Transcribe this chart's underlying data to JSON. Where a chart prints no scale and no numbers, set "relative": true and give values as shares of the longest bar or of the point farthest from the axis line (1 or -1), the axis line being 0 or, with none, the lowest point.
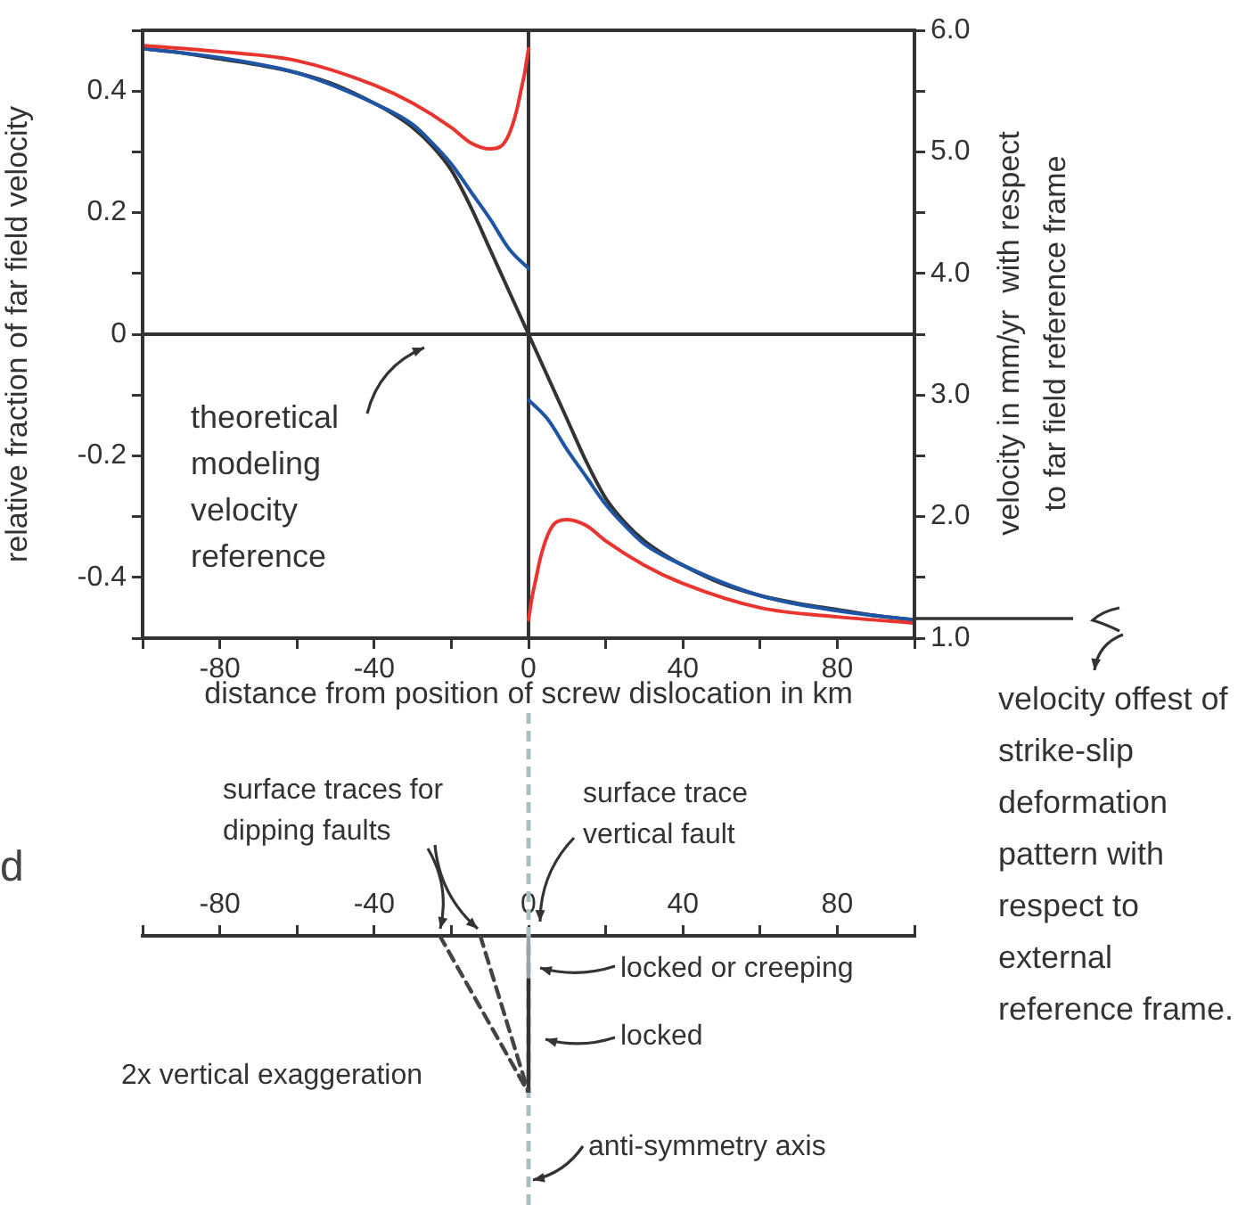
{
  "chart_data": [
    {
      "type": "line",
      "xlabel": "distance from position of screw dislocation in km",
      "ylabel": "relative fraction of far field velocity",
      "y2label": "velocity in mm/yr  with respect to far field reference frame",
      "xlim": [
        -100,
        100
      ],
      "xticks": [
        {
          "value": -100,
          "label": null
        },
        -80,
        {
          "value": -60,
          "label": null
        },
        -40,
        {
          "value": -20,
          "label": null
        },
        0,
        {
          "value": 20,
          "label": null
        },
        40,
        {
          "value": 60,
          "label": null
        },
        80,
        {
          "value": 100,
          "label": null
        }
      ],
      "ylim": [
        -0.5,
        0.5
      ],
      "yticks": [
        {
          "value": -0.5,
          "label": null
        },
        -0.4,
        {
          "value": -0.3,
          "label": null
        },
        -0.2,
        {
          "value": -0.1,
          "label": null
        },
        0,
        {
          "value": 0.1,
          "label": null
        },
        0.2,
        {
          "value": 0.3,
          "label": null
        },
        0.4,
        {
          "value": 0.5,
          "label": null
        }
      ],
      "y2lim": [
        1,
        6
      ],
      "y2ticks": [
        {
          "value": 1,
          "label": "1.0"
        },
        {
          "value": 1.5,
          "label": null
        },
        {
          "value": 2,
          "label": "2.0"
        },
        {
          "value": 2.5,
          "label": null
        },
        {
          "value": 3,
          "label": "3.0"
        },
        {
          "value": 3.5,
          "label": null
        },
        {
          "value": 4,
          "label": "4.0"
        },
        {
          "value": 4.5,
          "label": null
        },
        {
          "value": 5,
          "label": "5.0"
        },
        {
          "value": 5.5,
          "label": null
        },
        {
          "value": 6,
          "label": "6.0"
        }
      ],
      "grid": false,
      "legend": false,
      "marker": "none",
      "series": [
        {
          "color": "#e8352f",
          "x": [
            -100,
            -80,
            -60,
            -40,
            -30,
            -20,
            -15,
            -10,
            -7,
            -5,
            -3,
            -2,
            -1,
            0
          ],
          "values": [
            0.475,
            0.465,
            0.45,
            0.41,
            0.38,
            0.34,
            0.315,
            0.305,
            0.31,
            0.33,
            0.37,
            0.4,
            0.43,
            0.47
          ]
        },
        {
          "color": "#e8352f",
          "x": [
            0,
            1,
            2,
            3,
            5,
            7,
            10,
            15,
            20,
            30,
            40,
            60,
            80,
            100
          ],
          "values": [
            -0.47,
            -0.43,
            -0.4,
            -0.37,
            -0.33,
            -0.31,
            -0.305,
            -0.315,
            -0.34,
            -0.38,
            -0.41,
            -0.45,
            -0.465,
            -0.475
          ]
        },
        {
          "color": "#1f55a5",
          "x": [
            -100,
            -80,
            -60,
            -40,
            -30,
            -25,
            -20,
            -15,
            -10,
            -5,
            0
          ],
          "values": [
            0.47,
            0.455,
            0.43,
            0.38,
            0.345,
            0.315,
            0.28,
            0.235,
            0.19,
            0.14,
            0.108
          ]
        },
        {
          "color": "#1f55a5",
          "x": [
            0,
            5,
            10,
            15,
            20,
            25,
            30,
            40,
            60,
            80,
            100
          ],
          "values": [
            -0.108,
            -0.14,
            -0.19,
            -0.235,
            -0.28,
            -0.315,
            -0.345,
            -0.38,
            -0.43,
            -0.455,
            -0.47
          ]
        },
        {
          "color": "#333333",
          "x": [
            -100,
            -90,
            -80,
            -70,
            -60,
            -50,
            -40,
            -35,
            -30,
            -25,
            -20,
            -15,
            -10,
            -5,
            0,
            5,
            10,
            15,
            20,
            25,
            30,
            35,
            40,
            50,
            60,
            70,
            80,
            90,
            100
          ],
          "values": [
            0.47,
            0.463,
            0.453,
            0.443,
            0.43,
            0.41,
            0.38,
            0.362,
            0.34,
            0.31,
            0.27,
            0.21,
            0.14,
            0.07,
            0,
            -0.07,
            -0.14,
            -0.21,
            -0.27,
            -0.31,
            -0.34,
            -0.362,
            -0.38,
            -0.41,
            -0.43,
            -0.443,
            -0.453,
            -0.463,
            -0.47
          ]
        }
      ],
      "ref_lines": [
        {
          "axis": "x",
          "value": 0,
          "color": "#333333"
        },
        {
          "axis": "y",
          "value": 0,
          "color": "#333333"
        }
      ],
      "annotations": [
        "theoretical modeling velocity reference",
        "velocity offest of strike-slip deformation pattern with respect to external reference frame."
      ]
    },
    {
      "type": "line",
      "relative": true,
      "xlim": [
        -100,
        100
      ],
      "xticks": [
        {
          "value": -100,
          "label": null
        },
        -80,
        {
          "value": -60,
          "label": null
        },
        -40,
        {
          "value": -20,
          "label": null
        },
        0,
        {
          "value": 20,
          "label": null
        },
        40,
        {
          "value": 60,
          "label": null
        },
        80,
        {
          "value": 100,
          "label": null
        }
      ],
      "grid": false,
      "legend": false,
      "marker": "none",
      "series": [
        {
          "color": "#444444",
          "line_style": "dashed",
          "x": [
            -23,
            0
          ],
          "values": [
            0,
            -1
          ]
        },
        {
          "color": "#444444",
          "line_style": "dashed",
          "x": [
            -12.5,
            0
          ],
          "values": [
            0,
            -1
          ]
        },
        {
          "color": "#9aa3a8",
          "x": [
            0,
            0
          ],
          "values": [
            0,
            -0.26
          ]
        },
        {
          "color": "#333333",
          "x": [
            0,
            0
          ],
          "values": [
            -0.26,
            -1
          ]
        }
      ],
      "ref_lines": [
        {
          "axis": "x",
          "value": 0,
          "color": "#a9bfc4",
          "line_style": "dashed",
          "label": "anti-symmetry axis"
        }
      ],
      "annotations": [
        "surface traces for dipping faults",
        "surface trace vertical fault",
        "locked or creeping",
        "locked",
        "2x vertical exaggeration",
        "d"
      ]
    }
  ]
}
